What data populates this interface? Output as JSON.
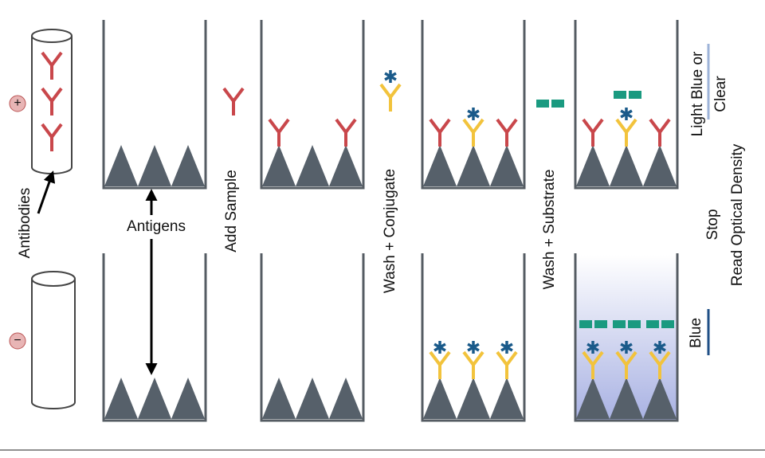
{
  "labels": {
    "plus": "+",
    "minus": "−",
    "antibodies": "Antibodies",
    "antigens": "Antigens",
    "add_sample": "Add Sample",
    "wash_conjugate": "Wash + Conjugate",
    "wash_substrate": "Wash + Substrate",
    "stop": "Stop",
    "read_od": "Read Optical Density",
    "light_blue": "Light Blue or",
    "clear": "Clear",
    "blue": "Blue"
  }
}
